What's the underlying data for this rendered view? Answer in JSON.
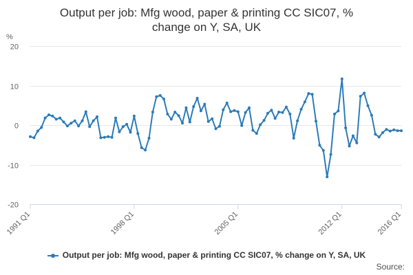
{
  "chart_data": {
    "type": "line",
    "title_lines": [
      "Output per job: Mfg wood, paper & printing CC SIC07, %",
      "change on Y, SA, UK"
    ],
    "ylabel": "%",
    "ylim": [
      -20,
      20
    ],
    "yticks": [
      20,
      10,
      0,
      -10,
      -20
    ],
    "x_tick_labels": [
      "1991 Q1",
      "1998 Q1",
      "2005 Q1",
      "2012 Q1",
      "2016 Q1"
    ],
    "grid": true,
    "legend_position": "bottom",
    "line_color": "#2b7bb9",
    "series": [
      {
        "name": "Output per job: Mfg wood, paper & printing CC SIC07, % change on Y, SA, UK",
        "start": "1991 Q1",
        "values": [
          -2.9,
          -3.2,
          -1.5,
          -0.6,
          1.8,
          2.6,
          2.3,
          1.5,
          1.8,
          0.8,
          -0.2,
          0.5,
          1.1,
          -0.2,
          1.1,
          3.4,
          -0.4,
          1.1,
          2.1,
          -3.2,
          -3.1,
          -2.9,
          -3.1,
          1.8,
          -1.7,
          -0.4,
          0.2,
          -1.8,
          2.3,
          -2.1,
          -5.7,
          -6.3,
          -3.3,
          3.3,
          7.2,
          7.5,
          6.6,
          2.8,
          1.5,
          3.3,
          2.4,
          0.5,
          4.4,
          0.8,
          4.7,
          6.8,
          3.6,
          5.3,
          0.9,
          1.6,
          -0.9,
          -0.3,
          3.9,
          5.6,
          3.4,
          3.7,
          3.4,
          -0.1,
          3.2,
          4.4,
          -1.3,
          -2.1,
          0.1,
          1.2,
          3.0,
          3.8,
          1.7,
          3.3,
          3.2,
          4.6,
          2.8,
          -3.3,
          1.1,
          4.0,
          5.9,
          8.0,
          7.8,
          1.0,
          -5.1,
          -6.4,
          -13.1,
          -7.4,
          2.8,
          3.6,
          11.7,
          -0.7,
          -5.3,
          -2.7,
          -4.5,
          7.3,
          8.1,
          4.9,
          2.5,
          -2.3,
          -3.0,
          -1.9,
          -1.1,
          -1.5,
          -1.2,
          -1.4,
          -1.4
        ]
      }
    ]
  },
  "source_label": "Source:"
}
